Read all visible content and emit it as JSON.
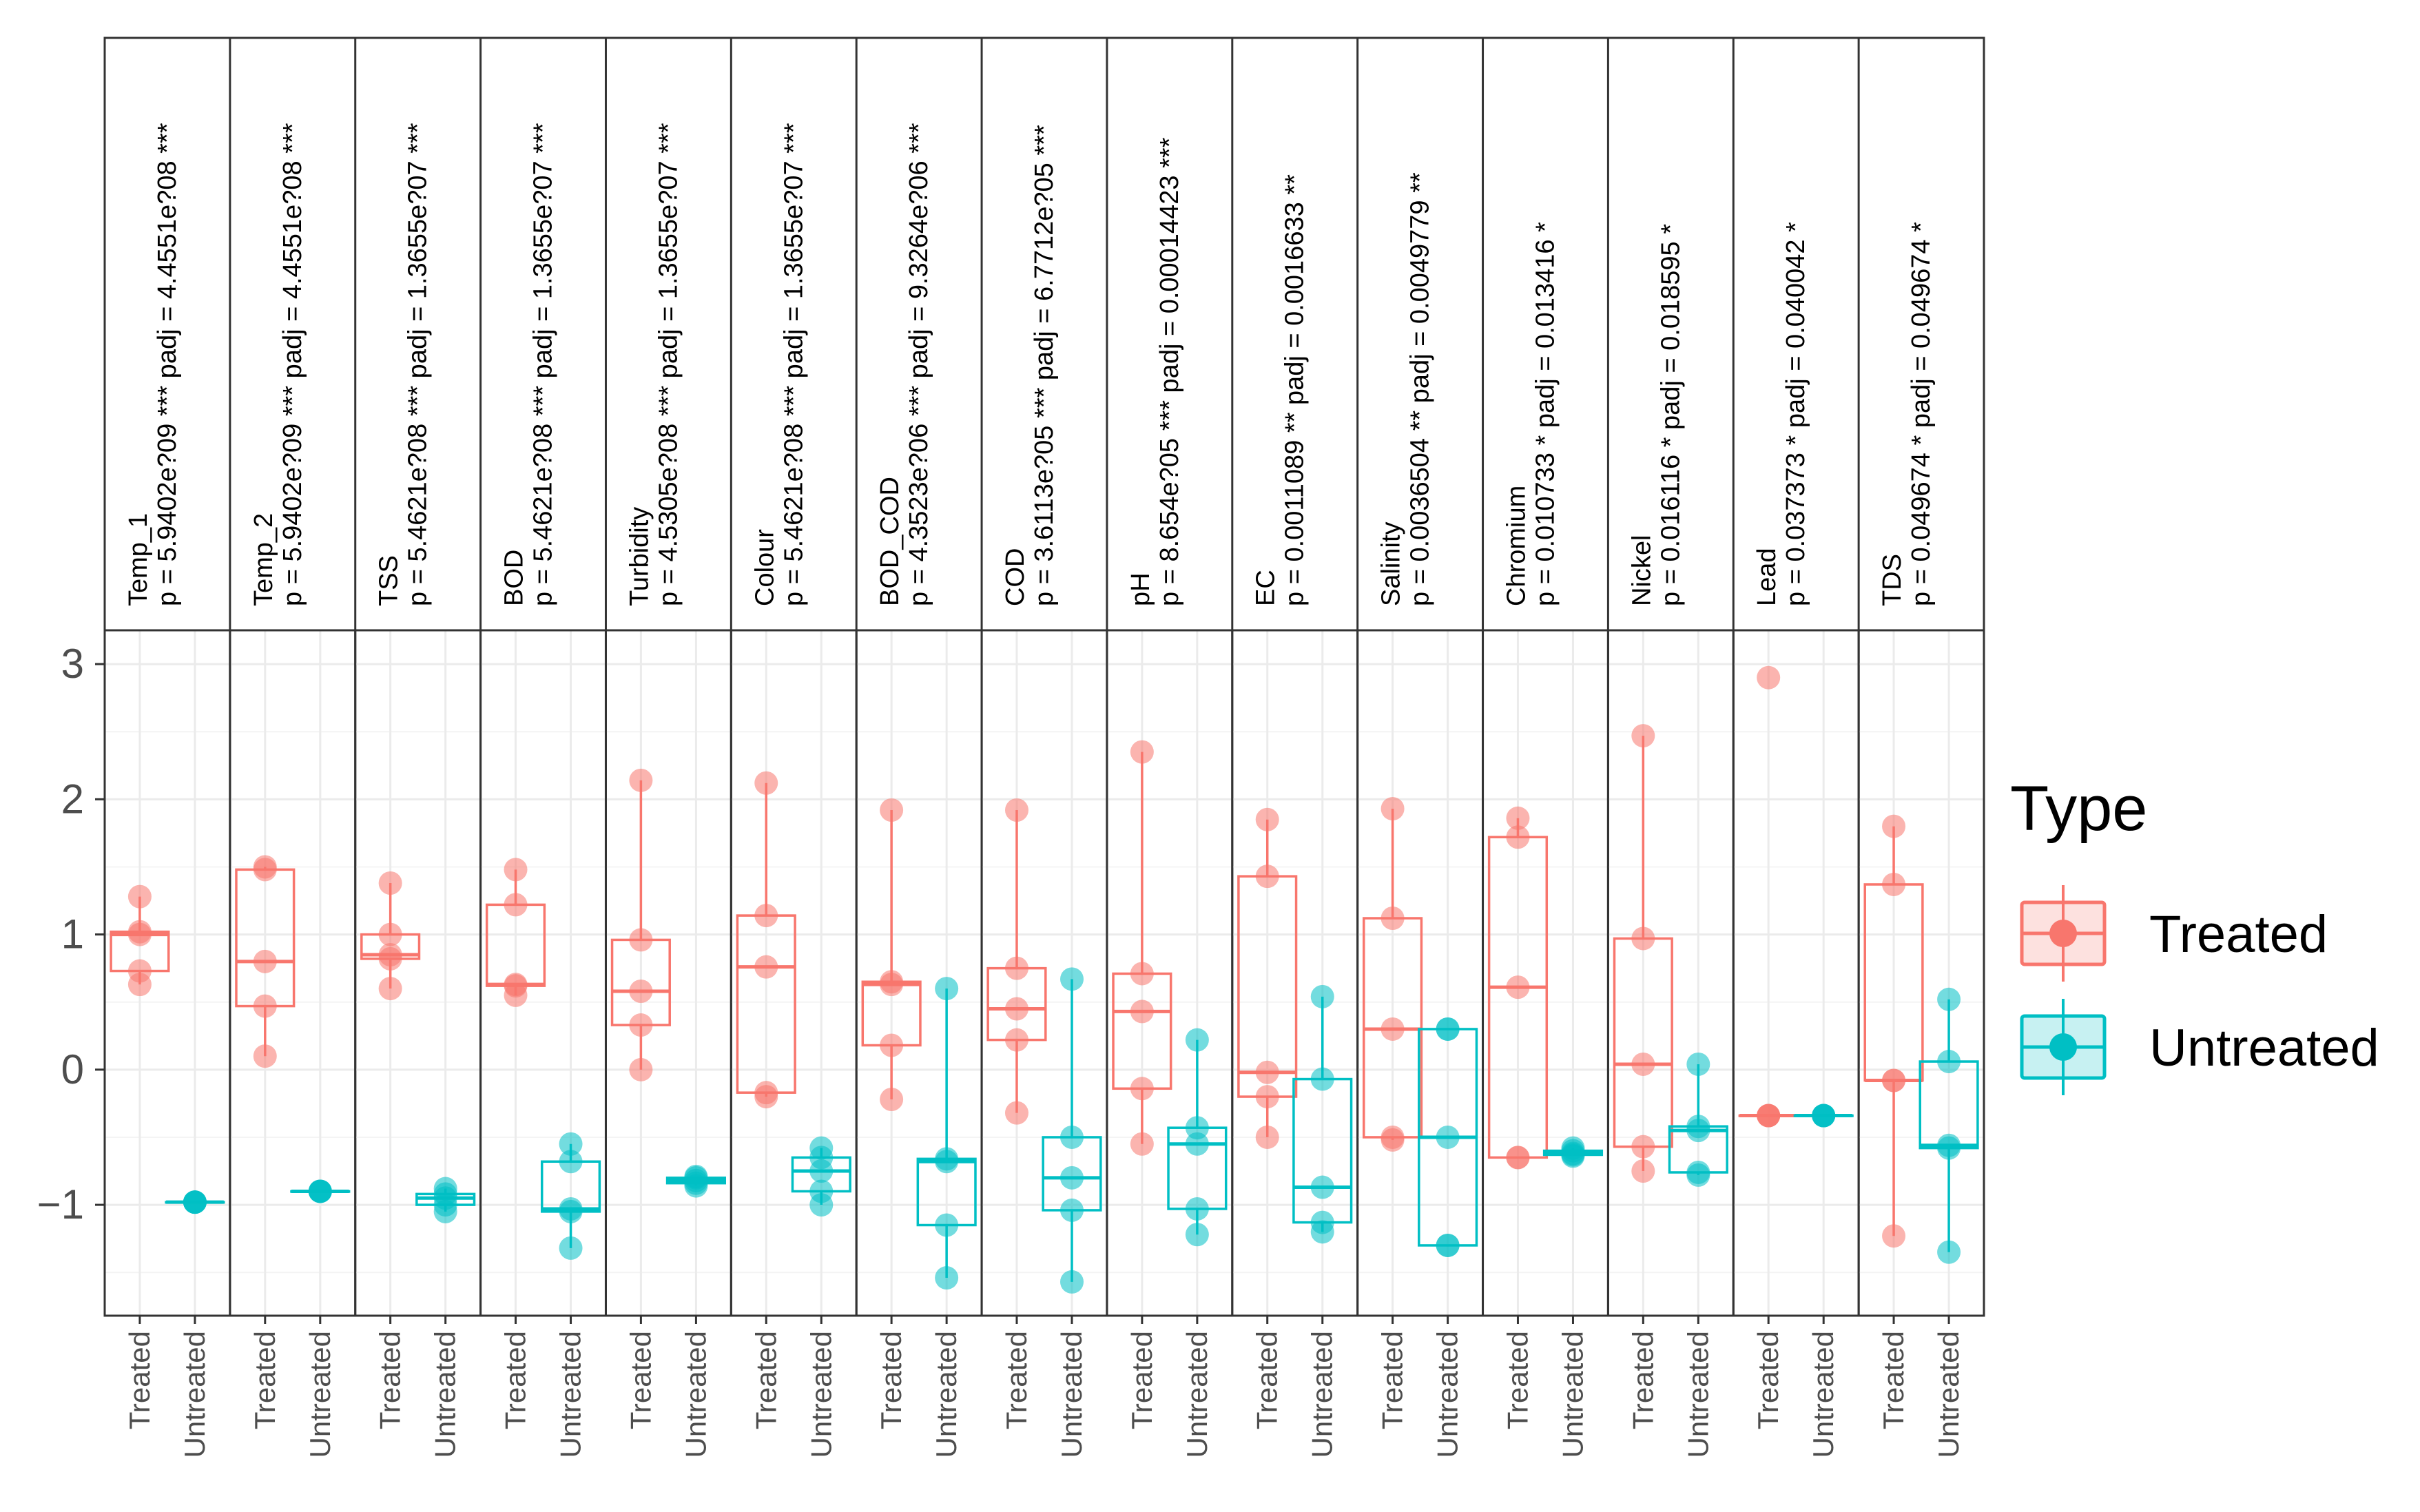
{
  "chart_data": {
    "type": "box",
    "title": "",
    "ylim": [
      -1.82,
      3.25
    ],
    "yticks": [
      3,
      2,
      1,
      0,
      -1
    ],
    "ytick_labels": [
      "3",
      "2",
      "1",
      "0",
      "−1"
    ],
    "groups": [
      "Treated",
      "Untreated"
    ],
    "legend": {
      "title": "Type",
      "position": "right",
      "entries": [
        {
          "label": "Treated",
          "color": "#f8766d"
        },
        {
          "label": "Untreated",
          "color": "#00bfc4"
        }
      ]
    },
    "panels": [
      {
        "header": [
          "Temp_1",
          "p = 5.9402e?09 *** padj = 4.4551e?08 ***"
        ],
        "treated": {
          "q1": 0.73,
          "median": 1.0,
          "q3": 1.02,
          "whisker_low": 0.63,
          "whisker_high": 1.28,
          "points": [
            0.63,
            0.73,
            1.0,
            1.02,
            1.28
          ]
        },
        "untreated": {
          "q1": -0.98,
          "median": -0.98,
          "q3": -0.98,
          "whisker_low": -0.98,
          "whisker_high": -0.98,
          "points": [
            -0.98,
            -0.98,
            -0.98,
            -0.98,
            -0.98
          ]
        }
      },
      {
        "header": [
          "Temp_2",
          "p = 5.9402e?09 *** padj = 4.4551e?08 ***"
        ],
        "treated": {
          "q1": 0.47,
          "median": 0.8,
          "q3": 1.48,
          "whisker_low": 0.1,
          "whisker_high": 1.5,
          "points": [
            0.1,
            0.47,
            0.8,
            1.48,
            1.5
          ]
        },
        "untreated": {
          "q1": -0.9,
          "median": -0.9,
          "q3": -0.9,
          "whisker_low": -0.9,
          "whisker_high": -0.9,
          "points": [
            -0.9,
            -0.9,
            -0.9,
            -0.9,
            -0.9
          ]
        }
      },
      {
        "header": [
          "TSS",
          "p = 5.4621e?08 *** padj = 1.3655e?07 ***"
        ],
        "treated": {
          "q1": 0.82,
          "median": 0.85,
          "q3": 1.0,
          "whisker_low": 0.6,
          "whisker_high": 1.38,
          "points": [
            0.6,
            0.82,
            0.85,
            1.0,
            1.38
          ]
        },
        "untreated": {
          "q1": -1.0,
          "median": -0.95,
          "q3": -0.92,
          "whisker_low": -1.05,
          "whisker_high": -0.88,
          "points": [
            -1.05,
            -1.0,
            -0.95,
            -0.92,
            -0.88
          ]
        }
      },
      {
        "header": [
          "BOD",
          "p = 5.4621e?08 *** padj = 1.3655e?07 ***"
        ],
        "treated": {
          "q1": 0.62,
          "median": 0.63,
          "q3": 1.22,
          "whisker_low": 0.55,
          "whisker_high": 1.48,
          "points": [
            0.55,
            0.62,
            0.63,
            1.22,
            1.48
          ]
        },
        "untreated": {
          "q1": -1.05,
          "median": -1.03,
          "q3": -0.68,
          "whisker_low": -1.32,
          "whisker_high": -0.55,
          "points": [
            -1.32,
            -1.05,
            -1.03,
            -0.68,
            -0.55
          ]
        }
      },
      {
        "header": [
          "Turbidity",
          "p = 4.5305e?08 *** padj = 1.3655e?07 ***"
        ],
        "treated": {
          "q1": 0.33,
          "median": 0.58,
          "q3": 0.96,
          "whisker_low": 0.0,
          "whisker_high": 2.14,
          "points": [
            0.0,
            0.33,
            0.58,
            0.96,
            2.14
          ]
        },
        "untreated": {
          "q1": -0.84,
          "median": -0.82,
          "q3": -0.8,
          "whisker_low": -0.86,
          "whisker_high": -0.79,
          "points": [
            -0.86,
            -0.84,
            -0.82,
            -0.8,
            -0.79
          ]
        }
      },
      {
        "header": [
          "Colour",
          "p = 5.4621e?08 *** padj = 1.3655e?07 ***"
        ],
        "treated": {
          "q1": -0.17,
          "median": 0.76,
          "q3": 1.14,
          "whisker_low": -0.2,
          "whisker_high": 2.12,
          "points": [
            -0.2,
            -0.17,
            0.76,
            1.14,
            2.12
          ]
        },
        "untreated": {
          "q1": -0.9,
          "median": -0.75,
          "q3": -0.65,
          "whisker_low": -1.0,
          "whisker_high": -0.58,
          "points": [
            -1.0,
            -0.9,
            -0.75,
            -0.65,
            -0.58
          ]
        }
      },
      {
        "header": [
          "BOD_COD",
          "p = 4.3523e?06 *** padj = 9.3264e?06 ***"
        ],
        "treated": {
          "q1": 0.18,
          "median": 0.63,
          "q3": 0.65,
          "whisker_low": -0.22,
          "whisker_high": 1.92,
          "points": [
            -0.22,
            0.18,
            0.63,
            0.65,
            1.92
          ]
        },
        "untreated": {
          "q1": -1.15,
          "median": -0.68,
          "q3": -0.66,
          "whisker_low": -1.54,
          "whisker_high": 0.6,
          "points": [
            -1.54,
            -1.15,
            -0.68,
            -0.66,
            0.6
          ]
        }
      },
      {
        "header": [
          "COD",
          "p = 3.6113e?05 *** padj = 6.7712e?05 ***"
        ],
        "treated": {
          "q1": 0.22,
          "median": 0.45,
          "q3": 0.75,
          "whisker_low": -0.32,
          "whisker_high": 1.92,
          "points": [
            -0.32,
            0.22,
            0.45,
            0.75,
            1.92
          ]
        },
        "untreated": {
          "q1": -1.04,
          "median": -0.8,
          "q3": -0.5,
          "whisker_low": -1.57,
          "whisker_high": 0.67,
          "points": [
            -1.57,
            -1.04,
            -0.8,
            -0.5,
            0.67
          ]
        }
      },
      {
        "header": [
          "pH",
          "p = 8.654e?05 *** padj = 0.00014423 ***"
        ],
        "treated": {
          "q1": -0.14,
          "median": 0.43,
          "q3": 0.71,
          "whisker_low": -0.55,
          "whisker_high": 2.35,
          "points": [
            -0.55,
            -0.14,
            0.43,
            0.71,
            2.35
          ]
        },
        "untreated": {
          "q1": -1.03,
          "median": -0.55,
          "q3": -0.43,
          "whisker_low": -1.22,
          "whisker_high": 0.22,
          "points": [
            -1.22,
            -1.03,
            -0.55,
            -0.43,
            0.22
          ]
        }
      },
      {
        "header": [
          "EC",
          "p = 0.0011089 ** padj = 0.0016633 **"
        ],
        "treated": {
          "q1": -0.2,
          "median": -0.02,
          "q3": 1.43,
          "whisker_low": -0.5,
          "whisker_high": 1.85,
          "points": [
            -0.5,
            -0.2,
            -0.02,
            1.43,
            1.85
          ]
        },
        "untreated": {
          "q1": -1.13,
          "median": -0.87,
          "q3": -0.07,
          "whisker_low": -1.2,
          "whisker_high": 0.54,
          "points": [
            -1.2,
            -1.13,
            -0.87,
            -0.07,
            0.54
          ]
        }
      },
      {
        "header": [
          "Salinity",
          "p = 0.0036504 ** padj = 0.0049779 **"
        ],
        "treated": {
          "q1": -0.5,
          "median": 0.3,
          "q3": 1.12,
          "whisker_low": -0.52,
          "whisker_high": 1.93,
          "points": [
            -0.52,
            -0.5,
            0.3,
            1.12,
            1.93
          ]
        },
        "untreated": {
          "q1": -1.3,
          "median": -0.5,
          "q3": 0.3,
          "whisker_low": -1.3,
          "whisker_high": 0.3,
          "points": [
            -1.3,
            -1.3,
            -0.5,
            0.3,
            0.3
          ]
        }
      },
      {
        "header": [
          "Chromium",
          "p = 0.010733 * padj = 0.013416 *"
        ],
        "treated": {
          "q1": -0.65,
          "median": 0.61,
          "q3": 1.72,
          "whisker_low": -0.65,
          "whisker_high": 1.86,
          "points": [
            -0.65,
            -0.65,
            0.61,
            1.72,
            1.86
          ]
        },
        "untreated": {
          "q1": -0.63,
          "median": -0.62,
          "q3": -0.6,
          "whisker_low": -0.64,
          "whisker_high": -0.58,
          "points": [
            -0.64,
            -0.63,
            -0.62,
            -0.6,
            -0.58
          ]
        }
      },
      {
        "header": [
          "Nickel",
          "p = 0.016116 * padj = 0.018595 *"
        ],
        "treated": {
          "q1": -0.57,
          "median": 0.04,
          "q3": 0.97,
          "whisker_low": -0.75,
          "whisker_high": 2.47,
          "points": [
            -0.75,
            -0.57,
            0.04,
            0.97,
            2.47
          ]
        },
        "untreated": {
          "q1": -0.76,
          "median": -0.45,
          "q3": -0.42,
          "whisker_low": -0.78,
          "whisker_high": 0.04,
          "points": [
            -0.78,
            -0.76,
            -0.45,
            -0.42,
            0.04
          ]
        }
      },
      {
        "header": [
          "Lead",
          "p = 0.037373 * padj = 0.040042 *"
        ],
        "treated": {
          "q1": -0.34,
          "median": -0.34,
          "q3": -0.34,
          "whisker_low": -0.34,
          "whisker_high": -0.34,
          "outlier": 2.9,
          "points": [
            -0.34,
            -0.34,
            -0.34,
            -0.34,
            2.9
          ]
        },
        "untreated": {
          "q1": -0.34,
          "median": -0.34,
          "q3": -0.34,
          "whisker_low": -0.34,
          "whisker_high": -0.34,
          "points": [
            -0.34,
            -0.34,
            -0.34,
            -0.34,
            -0.34
          ]
        }
      },
      {
        "header": [
          "TDS",
          "p = 0.049674 * padj = 0.049674 *"
        ],
        "treated": {
          "q1": -0.08,
          "median": -0.08,
          "q3": 1.37,
          "whisker_low": -1.23,
          "whisker_high": 1.8,
          "points": [
            -1.23,
            -0.08,
            -0.08,
            1.37,
            1.8
          ]
        },
        "untreated": {
          "q1": -0.58,
          "median": -0.56,
          "q3": 0.06,
          "whisker_low": -1.35,
          "whisker_high": 0.52,
          "points": [
            -1.35,
            -0.58,
            -0.56,
            0.06,
            0.52
          ]
        }
      }
    ]
  }
}
